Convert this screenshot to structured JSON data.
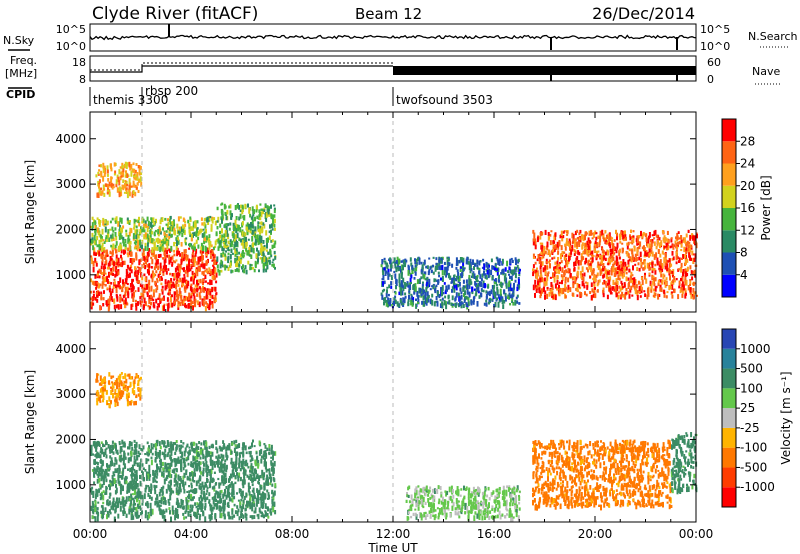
{
  "header": {
    "station": "Clyde River (fitACF)",
    "beam": "Beam 12",
    "date": "26/Dec/2014"
  },
  "strip_labels": {
    "nsky": "N.Sky",
    "freq": "Freq.",
    "freq_unit": "[MHz]",
    "cpid": "CPID",
    "nsearch": "N.Search",
    "nave": "Nave"
  },
  "strip_ticks": {
    "noise_left": [
      "10^5",
      "10^0"
    ],
    "noise_right": [
      "10^5",
      "10^0"
    ],
    "freq_left": [
      "18",
      "8"
    ],
    "nave_right": [
      "60",
      "0"
    ]
  },
  "cpid_segments": [
    {
      "label": "themis 3300",
      "start_hour": 0.0
    },
    {
      "label": "rbsp 200",
      "start_hour": 2.0
    },
    {
      "label": "twofsound 3503",
      "start_hour": 12.0
    }
  ],
  "x_axis": {
    "label": "Time UT",
    "ticks": [
      "00:00",
      "04:00",
      "08:00",
      "12:00",
      "16:00",
      "20:00",
      "00:00"
    ],
    "tick_hours": [
      0,
      4,
      8,
      12,
      16,
      20,
      24
    ],
    "range_hours": [
      0,
      24
    ]
  },
  "y_axis": {
    "label": "Slant Range [km]",
    "ticks": [
      "1000",
      "2000",
      "3000",
      "4000"
    ],
    "tick_values": [
      1000,
      2000,
      3000,
      4000
    ],
    "range_km": [
      180,
      4590
    ]
  },
  "colorbars": {
    "power": {
      "label": "Power [dB]",
      "ticks": [
        "4",
        "8",
        "12",
        "16",
        "20",
        "24",
        "28"
      ],
      "colors": [
        "#0000ff",
        "#1e50b4",
        "#2a8a64",
        "#46b43c",
        "#d2d21e",
        "#ffa01e",
        "#ff6414",
        "#ff0000"
      ]
    },
    "velocity": {
      "label": "Velocity [m s⁻¹]",
      "ticks": [
        "1000",
        "500",
        "100",
        "25",
        "-25",
        "-100",
        "-500",
        "-1000"
      ],
      "colors": [
        "#2846b4",
        "#28829b",
        "#3c8c64",
        "#64c84b",
        "#bebebe",
        "#ffb400",
        "#ff7800",
        "#ff3c00",
        "#ff0000"
      ]
    }
  },
  "chart_data": [
    {
      "type": "heatmap",
      "title": "Power",
      "xlabel": "Time UT",
      "ylabel": "Slant Range [km]",
      "xlim_hours": [
        0,
        24
      ],
      "ylim_km": [
        180,
        4590
      ],
      "colorbar_label": "Power [dB]",
      "regions": [
        {
          "hours": [
            0.0,
            5.0
          ],
          "range_km": [
            300,
            1600
          ],
          "value_db": 28
        },
        {
          "hours": [
            0.0,
            5.0
          ],
          "range_km": [
            1600,
            2300
          ],
          "value_db": 16
        },
        {
          "hours": [
            0.2,
            2.0
          ],
          "range_km": [
            2800,
            3500
          ],
          "value_db": 22
        },
        {
          "hours": [
            5.0,
            7.3
          ],
          "range_km": [
            1100,
            2600
          ],
          "value_db": 14
        },
        {
          "hours": [
            11.5,
            17.0
          ],
          "range_km": [
            350,
            1400
          ],
          "value_db": 8
        },
        {
          "hours": [
            17.5,
            24.0
          ],
          "range_km": [
            550,
            2000
          ],
          "value_db": 26
        }
      ]
    },
    {
      "type": "heatmap",
      "title": "Velocity",
      "xlabel": "Time UT",
      "ylabel": "Slant Range [km]",
      "xlim_hours": [
        0,
        24
      ],
      "ylim_km": [
        180,
        4590
      ],
      "colorbar_label": "Velocity [m s⁻¹]",
      "regions": [
        {
          "hours": [
            0.0,
            7.3
          ],
          "range_km": [
            300,
            2000
          ],
          "value_ms": 150
        },
        {
          "hours": [
            0.2,
            2.0
          ],
          "range_km": [
            2800,
            3500
          ],
          "value_ms": -100
        },
        {
          "hours": [
            12.5,
            17.0
          ],
          "range_km": [
            300,
            1000
          ],
          "value_ms": 50
        },
        {
          "hours": [
            17.5,
            23.0
          ],
          "range_km": [
            550,
            2000
          ],
          "value_ms": -150
        },
        {
          "hours": [
            23.0,
            24.0
          ],
          "range_km": [
            900,
            2200
          ],
          "value_ms": 150
        }
      ]
    }
  ]
}
